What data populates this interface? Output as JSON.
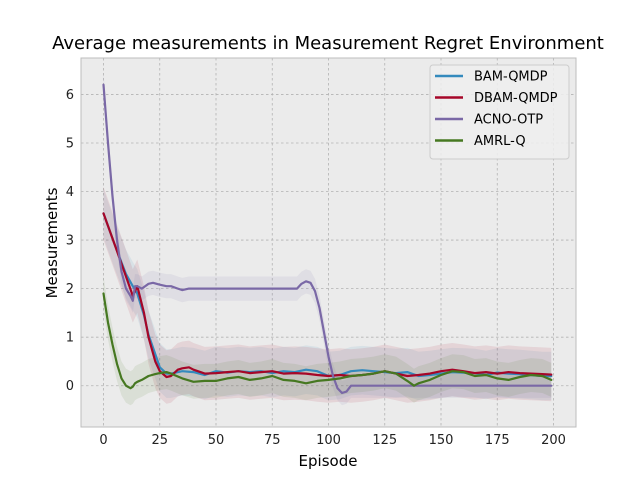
{
  "chart_data": {
    "type": "line",
    "title": "Average measurements in Measurement Regret Environment",
    "xlabel": "Episode",
    "ylabel": "Measurements",
    "xlim": [
      -10,
      210
    ],
    "ylim": [
      -0.85,
      6.75
    ],
    "xticks": [
      "0",
      "25",
      "50",
      "75",
      "100",
      "125",
      "150",
      "175",
      "200"
    ],
    "yticks": [
      "0",
      "1",
      "2",
      "3",
      "4",
      "5",
      "6"
    ],
    "grid": true,
    "legend_position": "top-right",
    "series": [
      {
        "name": "BAM-QMDP",
        "color": "#348ABD",
        "x": [
          0,
          5,
          10,
          13,
          15,
          18,
          20,
          23,
          25,
          28,
          30,
          35,
          40,
          45,
          50,
          55,
          60,
          65,
          70,
          75,
          80,
          85,
          90,
          95,
          100,
          105,
          110,
          115,
          120,
          125,
          130,
          135,
          140,
          145,
          150,
          155,
          160,
          165,
          170,
          175,
          180,
          185,
          190,
          195,
          199
        ],
        "y": [
          3.55,
          2.9,
          2.3,
          2.05,
          1.9,
          1.45,
          1.05,
          0.65,
          0.38,
          0.25,
          0.25,
          0.3,
          0.28,
          0.22,
          0.3,
          0.27,
          0.3,
          0.28,
          0.3,
          0.26,
          0.3,
          0.28,
          0.33,
          0.3,
          0.2,
          0.22,
          0.3,
          0.32,
          0.3,
          0.28,
          0.26,
          0.28,
          0.2,
          0.22,
          0.25,
          0.28,
          0.27,
          0.26,
          0.22,
          0.27,
          0.25,
          0.24,
          0.22,
          0.2,
          0.2
        ],
        "band_width": 0.5
      },
      {
        "name": "DBAM-QMDP",
        "color": "#A60628",
        "x": [
          0,
          5,
          10,
          13,
          15,
          18,
          20,
          23,
          25,
          28,
          30,
          33,
          35,
          38,
          40,
          45,
          50,
          55,
          60,
          65,
          70,
          75,
          80,
          85,
          90,
          95,
          100,
          105,
          110,
          115,
          120,
          125,
          130,
          135,
          140,
          145,
          150,
          155,
          160,
          165,
          170,
          175,
          180,
          185,
          190,
          195,
          199
        ],
        "y": [
          3.55,
          2.9,
          2.25,
          1.85,
          2.05,
          1.5,
          1.0,
          0.5,
          0.3,
          0.18,
          0.2,
          0.33,
          0.36,
          0.38,
          0.33,
          0.25,
          0.26,
          0.28,
          0.3,
          0.26,
          0.28,
          0.3,
          0.25,
          0.26,
          0.25,
          0.22,
          0.2,
          0.22,
          0.2,
          0.22,
          0.25,
          0.3,
          0.25,
          0.2,
          0.22,
          0.25,
          0.3,
          0.33,
          0.3,
          0.26,
          0.28,
          0.25,
          0.28,
          0.26,
          0.25,
          0.24,
          0.23
        ],
        "band_width": 0.55
      },
      {
        "name": "ACNO-OTP",
        "color": "#7A68A6",
        "x": [
          0,
          2,
          4,
          6,
          8,
          10,
          12,
          13,
          14,
          15,
          17,
          20,
          22,
          25,
          28,
          30,
          33,
          35,
          38,
          40,
          50,
          60,
          70,
          80,
          86,
          88,
          90,
          92,
          94,
          96,
          98,
          100,
          102,
          104,
          106,
          108,
          110,
          112,
          115,
          120,
          130,
          140,
          150,
          160,
          170,
          180,
          190,
          199
        ],
        "y": [
          6.2,
          5.0,
          3.9,
          3.0,
          2.35,
          2.0,
          1.85,
          1.75,
          2.05,
          2.05,
          2.0,
          2.1,
          2.12,
          2.08,
          2.05,
          2.05,
          2.0,
          1.97,
          2.0,
          2.0,
          2.0,
          2.0,
          2.0,
          2.0,
          2.0,
          2.1,
          2.15,
          2.12,
          1.95,
          1.6,
          1.1,
          0.6,
          0.2,
          -0.05,
          -0.15,
          -0.12,
          0.0,
          0.0,
          0.0,
          0.0,
          0.0,
          0.0,
          0.0,
          0.0,
          0.0,
          0.0,
          0.0,
          0.0
        ],
        "band_width": 0.25
      },
      {
        "name": "AMRL-Q",
        "color": "#467821",
        "x": [
          0,
          2,
          4,
          6,
          8,
          10,
          12,
          13,
          14,
          15,
          17,
          20,
          23,
          25,
          28,
          30,
          35,
          40,
          45,
          50,
          55,
          60,
          65,
          70,
          75,
          80,
          85,
          90,
          95,
          100,
          105,
          110,
          115,
          120,
          125,
          130,
          135,
          138,
          140,
          145,
          150,
          155,
          160,
          165,
          170,
          175,
          180,
          185,
          190,
          195,
          199
        ],
        "y": [
          1.9,
          1.3,
          0.85,
          0.45,
          0.15,
          0.0,
          -0.05,
          -0.02,
          0.05,
          0.08,
          0.12,
          0.2,
          0.24,
          0.26,
          0.28,
          0.25,
          0.15,
          0.08,
          0.1,
          0.1,
          0.15,
          0.18,
          0.12,
          0.15,
          0.2,
          0.12,
          0.1,
          0.05,
          0.1,
          0.12,
          0.15,
          0.2,
          0.22,
          0.25,
          0.3,
          0.25,
          0.1,
          0.0,
          0.05,
          0.12,
          0.22,
          0.3,
          0.28,
          0.2,
          0.22,
          0.15,
          0.12,
          0.18,
          0.22,
          0.2,
          0.12
        ],
        "band_width": 0.35
      }
    ]
  }
}
